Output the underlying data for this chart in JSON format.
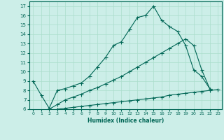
{
  "xlabel": "Humidex (Indice chaleur)",
  "bg_color": "#cceee8",
  "grid_color": "#aaddcc",
  "line_color": "#006655",
  "xlim": [
    -0.5,
    23.5
  ],
  "ylim": [
    6,
    17.5
  ],
  "xticks": [
    0,
    1,
    2,
    3,
    4,
    5,
    6,
    7,
    8,
    9,
    10,
    11,
    12,
    13,
    14,
    15,
    16,
    17,
    18,
    19,
    20,
    21,
    22,
    23
  ],
  "yticks": [
    6,
    7,
    8,
    9,
    10,
    11,
    12,
    13,
    14,
    15,
    16,
    17
  ],
  "line1_x": [
    0,
    1,
    2,
    3,
    4,
    5,
    6,
    7,
    8,
    9,
    10,
    11,
    12,
    13,
    14,
    15,
    16,
    17,
    18,
    19,
    20,
    21,
    22
  ],
  "line1_y": [
    9.0,
    7.5,
    6.1,
    8.0,
    8.2,
    8.5,
    8.8,
    9.5,
    10.5,
    11.5,
    12.8,
    13.2,
    14.5,
    15.8,
    16.0,
    17.0,
    15.5,
    14.8,
    14.3,
    12.8,
    10.2,
    9.5,
    8.2
  ],
  "line2_x": [
    2,
    3,
    4,
    5,
    6,
    7,
    8,
    9,
    10,
    11,
    12,
    13,
    14,
    15,
    16,
    17,
    18,
    19,
    20,
    21,
    22
  ],
  "line2_y": [
    6.0,
    6.5,
    7.0,
    7.3,
    7.6,
    8.0,
    8.3,
    8.7,
    9.1,
    9.5,
    10.0,
    10.5,
    11.0,
    11.5,
    12.0,
    12.5,
    13.0,
    13.5,
    12.8,
    10.2,
    8.2
  ],
  "line3_x": [
    3,
    4,
    5,
    6,
    7,
    8,
    9,
    10,
    11,
    12,
    13,
    14,
    15,
    16,
    17,
    18,
    19,
    20,
    21,
    22,
    23
  ],
  "line3_y": [
    6.0,
    6.1,
    6.2,
    6.3,
    6.4,
    6.5,
    6.6,
    6.7,
    6.8,
    6.9,
    7.0,
    7.1,
    7.2,
    7.3,
    7.5,
    7.6,
    7.7,
    7.8,
    7.9,
    8.0,
    8.1
  ]
}
